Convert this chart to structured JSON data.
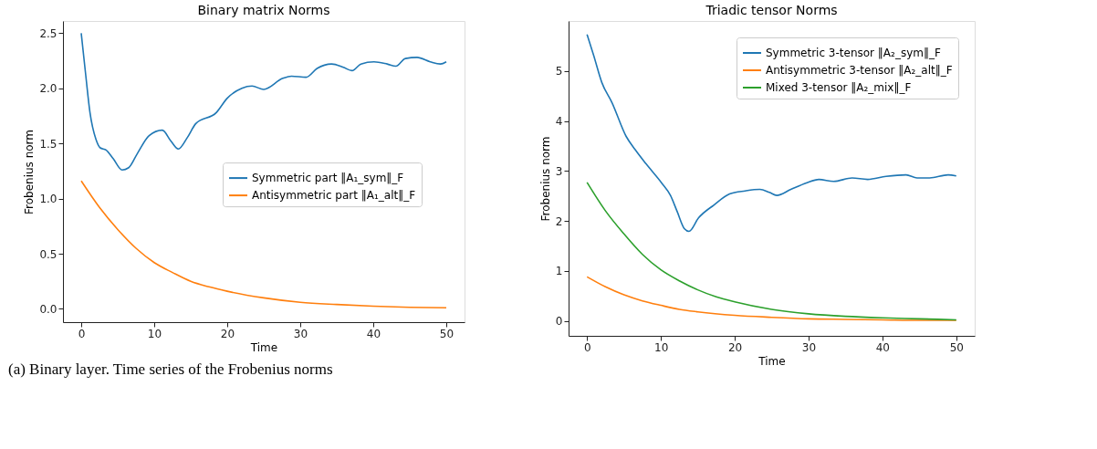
{
  "chart_data": [
    {
      "type": "line",
      "title": "Binary matrix Norms",
      "xlabel": "Time",
      "ylabel": "Frobenius norm",
      "xlim": [
        -2.5,
        52.5
      ],
      "ylim": [
        -0.12,
        2.61
      ],
      "xticks": [
        0,
        10,
        20,
        30,
        40,
        50
      ],
      "yticks": [
        {
          "value": 0,
          "label": "0.0"
        },
        0.5,
        {
          "value": 1,
          "label": "1.0"
        },
        1.5,
        {
          "value": 2,
          "label": "2.0"
        },
        2.5
      ],
      "grid": false,
      "legend": "right",
      "annotations": [
        "(a) Binary layer. Time series of the Frobenius norms"
      ],
      "series": [
        {
          "name": "Symmetric part ‖A₁_sym‖_F",
          "color": "#1f77b4",
          "x": [
            0,
            0.6,
            1.2,
            2,
            2.6,
            3.4,
            4.4,
            5.6,
            6.5,
            7.7,
            9.3,
            11.1,
            12.3,
            13.3,
            14.5,
            15.7,
            18.5,
            20,
            22,
            23.4,
            25,
            27.6,
            28.8,
            30.8,
            32.3,
            34.3,
            35.9,
            37.1,
            38.3,
            40.1,
            41.9,
            43.1,
            44.4,
            46,
            47.8,
            49.2,
            50
          ],
          "values": [
            2.5,
            2.13,
            1.78,
            1.54,
            1.46,
            1.44,
            1.36,
            1.26,
            1.28,
            1.41,
            1.57,
            1.62,
            1.52,
            1.45,
            1.55,
            1.68,
            1.78,
            1.91,
            2.0,
            2.02,
            1.99,
            2.09,
            2.11,
            2.1,
            2.18,
            2.22,
            2.19,
            2.16,
            2.22,
            2.24,
            2.22,
            2.2,
            2.27,
            2.28,
            2.24,
            2.22,
            2.24
          ]
        },
        {
          "name": "Antisymmetric part ‖A₁_alt‖_F",
          "color": "#ff7f0e",
          "x": [
            0,
            2.5,
            5,
            7.5,
            10,
            12.5,
            15,
            17.5,
            20,
            25,
            30,
            35,
            40,
            45,
            50
          ],
          "values": [
            1.16,
            0.92,
            0.72,
            0.55,
            0.42,
            0.33,
            0.25,
            0.2,
            0.16,
            0.1,
            0.06,
            0.04,
            0.025,
            0.015,
            0.01
          ]
        }
      ]
    },
    {
      "type": "line",
      "title": "Triadic tensor Norms",
      "xlabel": "Time",
      "ylabel": "Frobenius norm",
      "xlim": [
        -2.5,
        52.5
      ],
      "ylim": [
        -0.3,
        6.0
      ],
      "xticks": [
        0,
        10,
        20,
        30,
        40,
        50
      ],
      "yticks": [
        0,
        1,
        2,
        3,
        4,
        5
      ],
      "grid": false,
      "legend": "top right",
      "series": [
        {
          "name": "Symmetric 3-tensor ‖A₂_sym‖_F",
          "color": "#1f77b4",
          "x": [
            0,
            0.9,
            2,
            3.4,
            5.3,
            6.5,
            8,
            10.1,
            11.3,
            12.2,
            13.2,
            13.8,
            15.1,
            17.2,
            19.3,
            21.4,
            23.4,
            24.7,
            25.7,
            27.6,
            29.7,
            31.4,
            33.4,
            35.9,
            38,
            40.5,
            43.2,
            44.7,
            46.4,
            48.9,
            50
          ],
          "values": [
            5.73,
            5.31,
            4.77,
            4.36,
            3.69,
            3.43,
            3.14,
            2.76,
            2.51,
            2.19,
            1.84,
            1.79,
            2.06,
            2.32,
            2.54,
            2.6,
            2.63,
            2.57,
            2.51,
            2.63,
            2.76,
            2.83,
            2.79,
            2.86,
            2.83,
            2.89,
            2.92,
            2.86,
            2.86,
            2.92,
            2.9
          ]
        },
        {
          "name": "Antisymmetric 3-tensor ‖A₂_alt‖_F",
          "color": "#ff7f0e",
          "x": [
            0,
            2.5,
            5,
            7.5,
            10,
            12.5,
            15,
            20,
            25,
            30,
            35,
            40,
            45,
            50
          ],
          "values": [
            0.88,
            0.68,
            0.52,
            0.4,
            0.31,
            0.23,
            0.18,
            0.11,
            0.07,
            0.04,
            0.03,
            0.02,
            0.01,
            0.01
          ]
        },
        {
          "name": "Mixed 3-tensor ‖A₂_mix‖_F",
          "color": "#2ca02c",
          "x": [
            0,
            2.5,
            5,
            7.5,
            10,
            12.5,
            15,
            17.5,
            20,
            25,
            30,
            35,
            40,
            45,
            50
          ],
          "values": [
            2.77,
            2.2,
            1.74,
            1.33,
            1.02,
            0.8,
            0.62,
            0.48,
            0.38,
            0.23,
            0.14,
            0.09,
            0.06,
            0.04,
            0.02
          ]
        }
      ]
    }
  ]
}
